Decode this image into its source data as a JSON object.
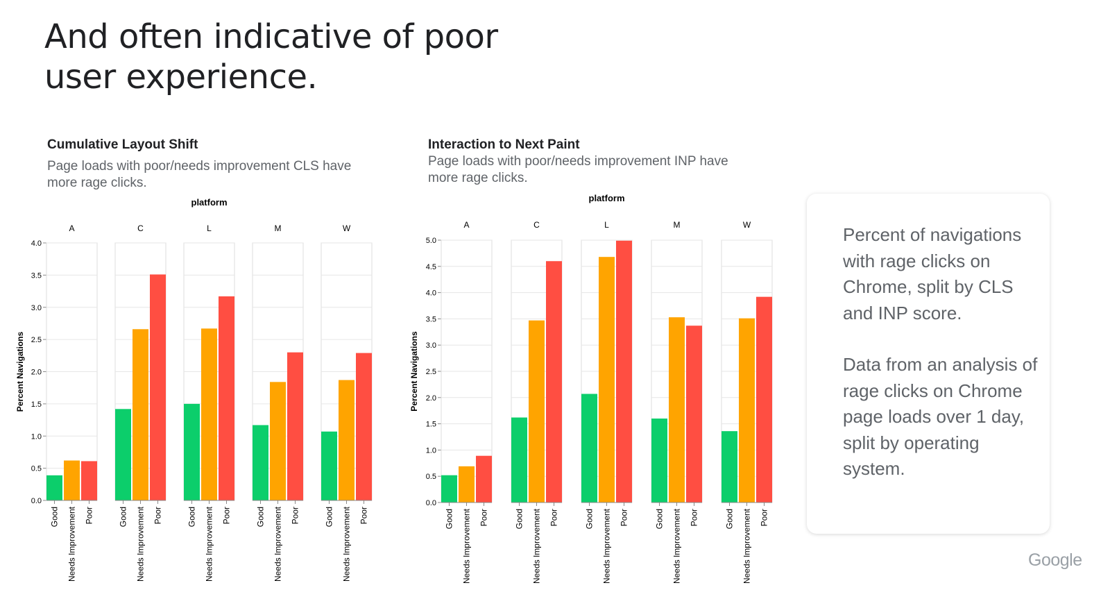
{
  "slide": {
    "title": "And often indicative of poor user experience.",
    "logo": "Google"
  },
  "note": {
    "paragraph1": "Percent of navigations with rage clicks on Chrome, split by CLS and INP score.",
    "paragraph2": "Data from an analysis of rage clicks on Chrome page loads over 1 day, split by operating system."
  },
  "chart_data": [
    {
      "type": "bar",
      "id": "cls",
      "title": "Cumulative Layout Shift",
      "subtitle": "Page loads with poor/needs improvement CLS have more rage clicks.",
      "facet_label": "platform",
      "facets": [
        "A",
        "C",
        "L",
        "M",
        "W"
      ],
      "categories": [
        "Good",
        "Needs Improvement",
        "Poor"
      ],
      "colors": [
        "#0cce6b",
        "#ffa400",
        "#ff4e42"
      ],
      "ylabel": "Percent Navigations",
      "ylim": [
        0,
        4.0
      ],
      "yticks": [
        "0.0",
        "0.5",
        "1.0",
        "1.5",
        "2.0",
        "2.5",
        "3.0",
        "3.5",
        "4.0"
      ],
      "series": [
        {
          "facet": "A",
          "values": [
            0.39,
            0.62,
            0.61
          ]
        },
        {
          "facet": "C",
          "values": [
            1.42,
            2.66,
            3.51
          ]
        },
        {
          "facet": "L",
          "values": [
            1.5,
            2.67,
            3.17
          ]
        },
        {
          "facet": "M",
          "values": [
            1.17,
            1.84,
            2.3
          ]
        },
        {
          "facet": "W",
          "values": [
            1.07,
            1.87,
            2.29
          ]
        }
      ]
    },
    {
      "type": "bar",
      "id": "inp",
      "title": "Interaction to Next Paint",
      "subtitle": "Page loads with poor/needs improvement INP have more rage clicks.",
      "facet_label": "platform",
      "facets": [
        "A",
        "C",
        "L",
        "M",
        "W"
      ],
      "categories": [
        "Good",
        "Needs Improvement",
        "Poor"
      ],
      "colors": [
        "#0cce6b",
        "#ffa400",
        "#ff4e42"
      ],
      "ylabel": "Percent Navigations",
      "ylim": [
        0,
        5.0
      ],
      "yticks": [
        "0.0",
        "0.5",
        "1.0",
        "1.5",
        "2.0",
        "2.5",
        "3.0",
        "3.5",
        "4.0",
        "4.5",
        "5.0"
      ],
      "series": [
        {
          "facet": "A",
          "values": [
            0.52,
            0.69,
            0.89
          ]
        },
        {
          "facet": "C",
          "values": [
            1.62,
            3.47,
            4.6
          ]
        },
        {
          "facet": "L",
          "values": [
            2.07,
            4.68,
            4.99
          ]
        },
        {
          "facet": "M",
          "values": [
            1.6,
            3.53,
            3.37
          ]
        },
        {
          "facet": "W",
          "values": [
            1.36,
            3.51,
            3.92
          ]
        }
      ]
    }
  ]
}
